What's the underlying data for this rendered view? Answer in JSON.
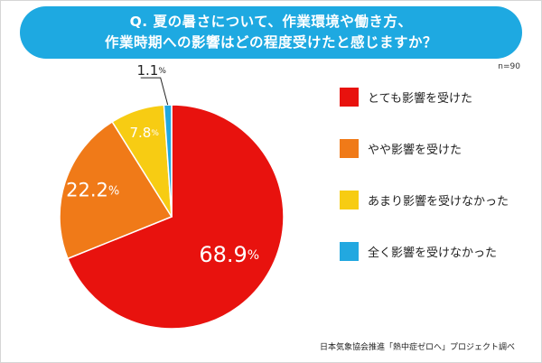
{
  "title_line1": "Q. 夏の暑さについて、作業環境や働き方、",
  "title_line2": "作業時期への影響はどの程度受けたと感じますか？",
  "sample_size": "n=90",
  "source": "日本気象協会推進「熱中症ゼロへ」プロジェクト調べ",
  "chart_data": {
    "type": "pie",
    "title": "Q. 夏の暑さについて、作業環境や働き方、作業時期への影響はどの程度受けたと感じますか？",
    "unit": "%",
    "legend_position": "right",
    "slices": [
      {
        "label": "とても影響を受けた",
        "value": 68.9,
        "value_text": "68.9",
        "color": "#e8120e"
      },
      {
        "label": "やや影響を受けた",
        "value": 22.2,
        "value_text": "22.2",
        "color": "#f07a18"
      },
      {
        "label": "あまり影響を受けなかった",
        "value": 7.8,
        "value_text": "7.8",
        "color": "#f7cc13"
      },
      {
        "label": "全く影響を受けなかった",
        "value": 1.1,
        "value_text": "1.1",
        "color": "#22a8e0"
      }
    ]
  }
}
